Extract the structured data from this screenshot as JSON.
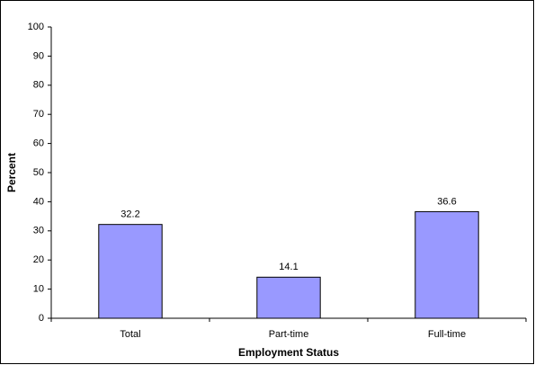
{
  "chart_data": {
    "type": "bar",
    "categories": [
      "Total",
      "Part-time",
      "Full-time"
    ],
    "values": [
      32.2,
      14.1,
      36.6
    ],
    "color": "#9999ff",
    "ylim": [
      0,
      100
    ],
    "yticks": [
      0,
      10,
      20,
      30,
      40,
      50,
      60,
      70,
      80,
      90,
      100
    ],
    "x_label": "Employment Status",
    "y_label": "Percent",
    "grid": false
  }
}
